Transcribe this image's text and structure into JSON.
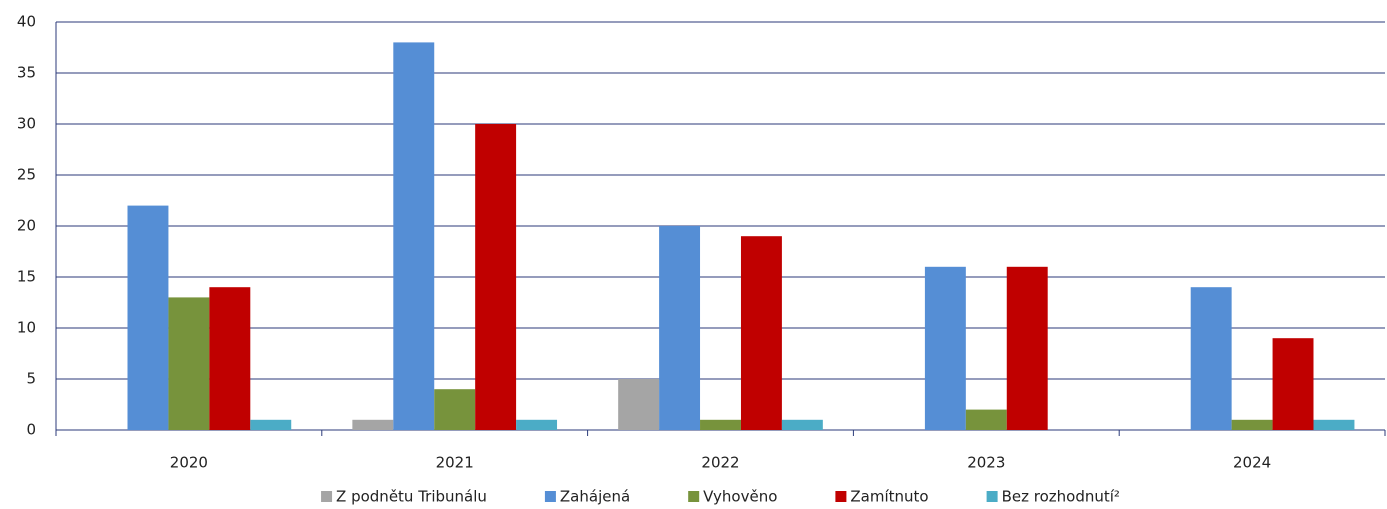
{
  "chart_data": {
    "type": "bar",
    "categories": [
      "2020",
      "2021",
      "2022",
      "2023",
      "2024"
    ],
    "series": [
      {
        "name": "Z podnětu Tribunálu",
        "color": "#a5a5a5",
        "values": [
          0,
          1,
          5,
          0,
          0
        ]
      },
      {
        "name": "Zahájená",
        "color": "#558ed5",
        "values": [
          22,
          38,
          20,
          16,
          14
        ]
      },
      {
        "name": "Vyhověno",
        "color": "#77933c",
        "values": [
          13,
          4,
          1,
          2,
          1
        ]
      },
      {
        "name": "Zamítnuto",
        "color": "#c00000",
        "values": [
          14,
          30,
          19,
          16,
          9
        ]
      },
      {
        "name": "Bez rozhodnutí²",
        "color": "#4bacc6",
        "values": [
          1,
          1,
          1,
          0,
          1
        ]
      }
    ],
    "ylim": [
      0,
      40
    ],
    "yticks": [
      0,
      5,
      10,
      15,
      20,
      25,
      30,
      35,
      40
    ],
    "grid": true,
    "legend": "bottom"
  }
}
